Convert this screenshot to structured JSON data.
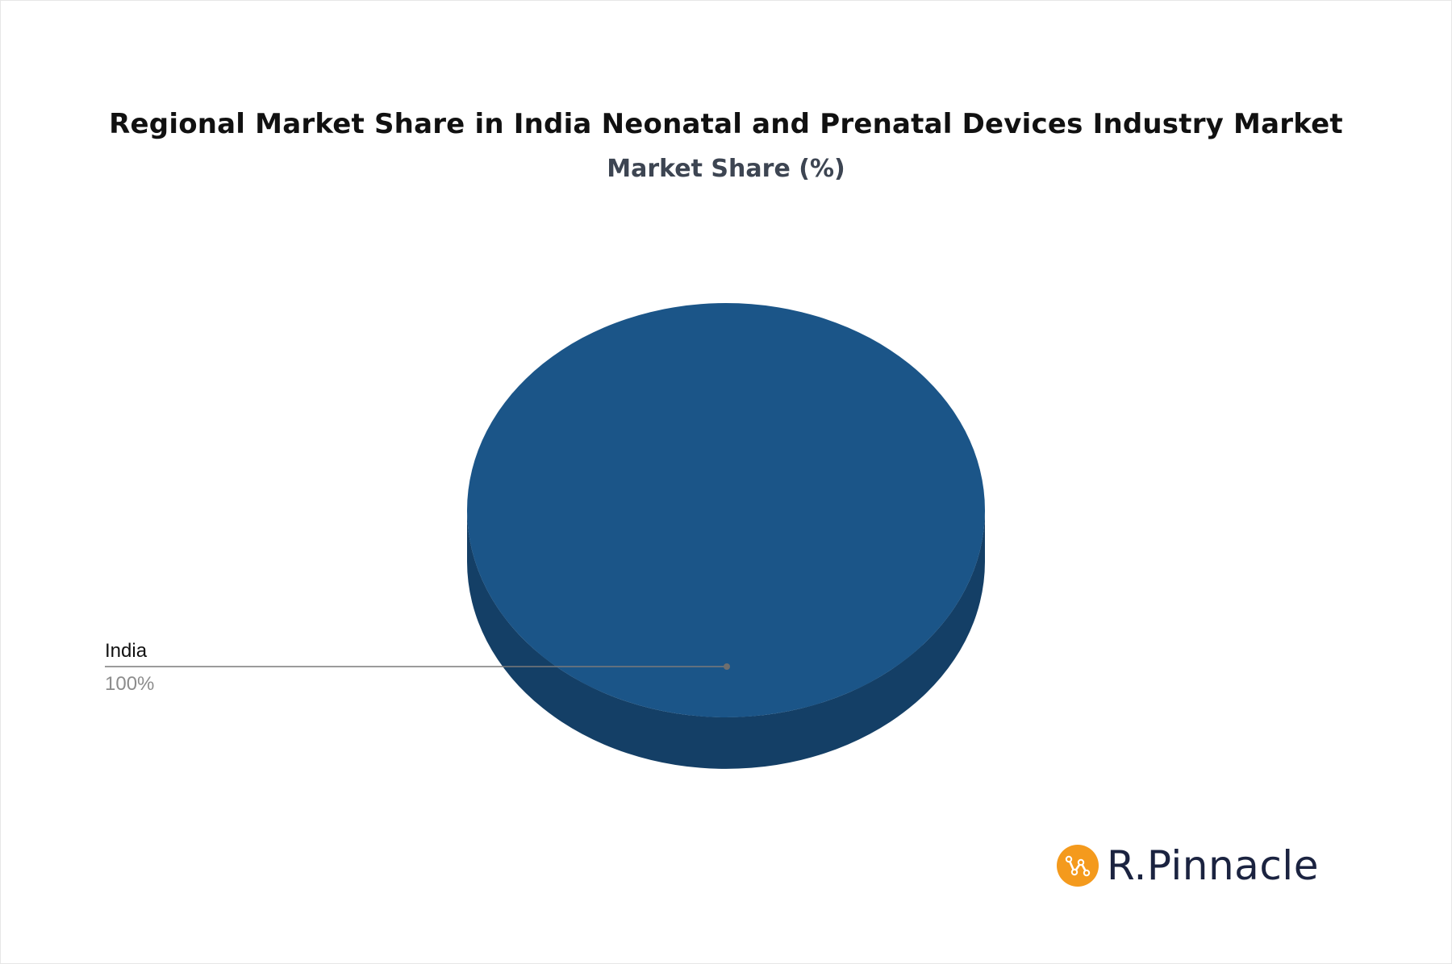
{
  "chart_data": {
    "type": "pie",
    "title": "Regional Market Share in India Neonatal and Prenatal Devices Industry Market",
    "subtitle": "Market Share (%)",
    "slices": [
      {
        "label": "India",
        "value": 100,
        "value_label": "100%",
        "color": "#1b5588"
      }
    ],
    "style": "3d",
    "side_color": "#143f66"
  },
  "branding": {
    "logo_text": "R.Pinnacle",
    "logo_color": "#f49a1d"
  }
}
